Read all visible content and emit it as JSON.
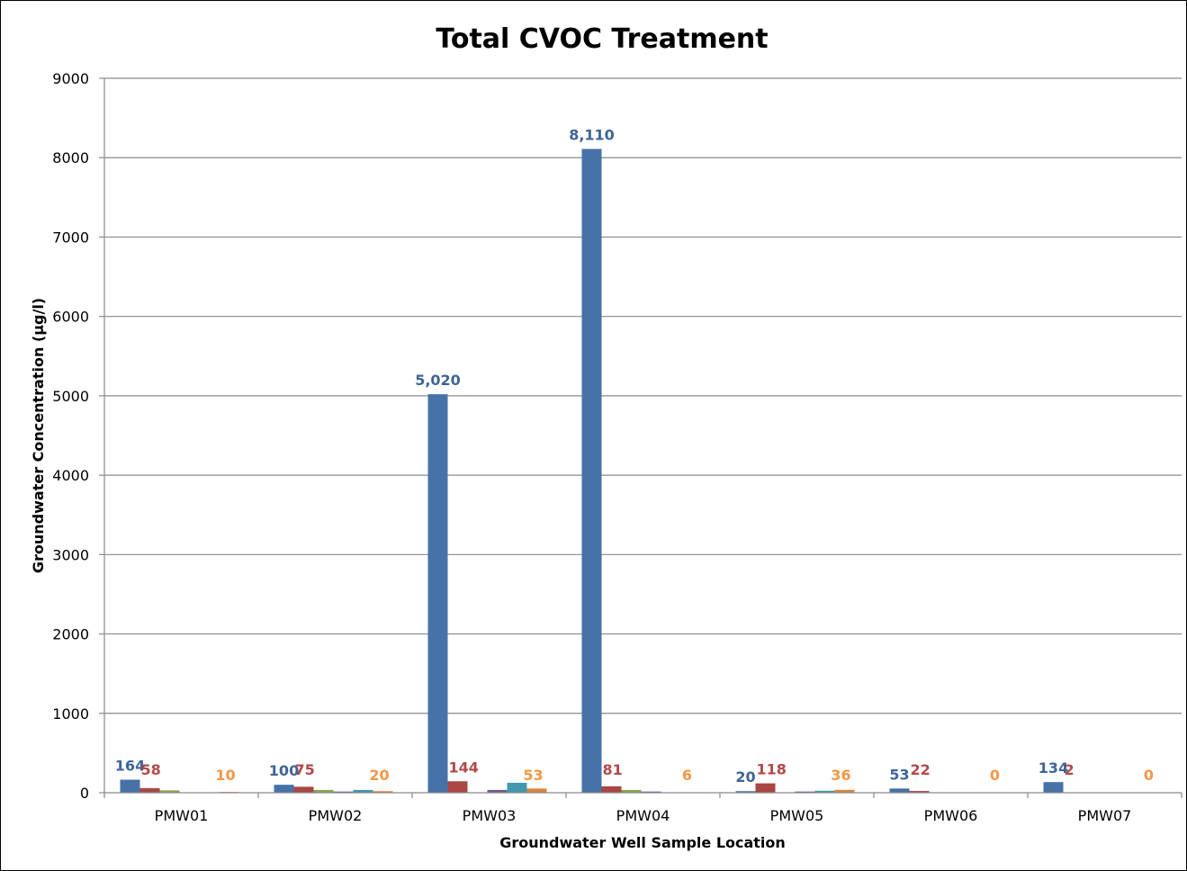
{
  "chart_data": {
    "type": "bar",
    "title": "Total CVOC Treatment",
    "xlabel": "Groundwater Well Sample Location",
    "ylabel": "Groundwater Concentration (µg/l)",
    "ylim": [
      0,
      9000
    ],
    "yticks": [
      "0",
      "1000",
      "2000",
      "3000",
      "4000",
      "5000",
      "6000",
      "7000",
      "8000",
      "9000"
    ],
    "grid": true,
    "legend": "none",
    "categories": [
      "PMW01",
      "PMW02",
      "PMW03",
      "PMW04",
      "PMW05",
      "PMW06",
      "PMW07"
    ],
    "series": [
      {
        "color": "#4672A8",
        "values": [
          164,
          100,
          5020,
          8110,
          20,
          53,
          134
        ],
        "labels": [
          "164",
          "100",
          "5,020",
          "8,110",
          "20",
          "53",
          "134"
        ],
        "show_labels": true
      },
      {
        "color": "#AA4643",
        "values": [
          58,
          75,
          144,
          81,
          118,
          22,
          2
        ],
        "labels": [
          "58",
          "75",
          "144",
          "81",
          "118",
          "22",
          "2"
        ],
        "show_labels": true
      },
      {
        "color": "#89A54E",
        "values": [
          30,
          35,
          0,
          35,
          0,
          0,
          0
        ],
        "show_labels": false
      },
      {
        "color": "#71588F",
        "values": [
          0,
          15,
          35,
          15,
          15,
          0,
          0
        ],
        "show_labels": false
      },
      {
        "color": "#4198AF",
        "values": [
          0,
          35,
          125,
          0,
          25,
          0,
          0
        ],
        "show_labels": false
      },
      {
        "color": "#DB843D",
        "values": [
          10,
          20,
          53,
          6,
          36,
          0,
          0
        ],
        "labels": [
          "10",
          "20",
          "53",
          "6",
          "36",
          "0",
          "0"
        ],
        "show_labels": true
      }
    ],
    "label_colors": [
      "#3E6596",
      "#B24A47",
      "",
      "",
      "",
      "#F79646"
    ]
  }
}
